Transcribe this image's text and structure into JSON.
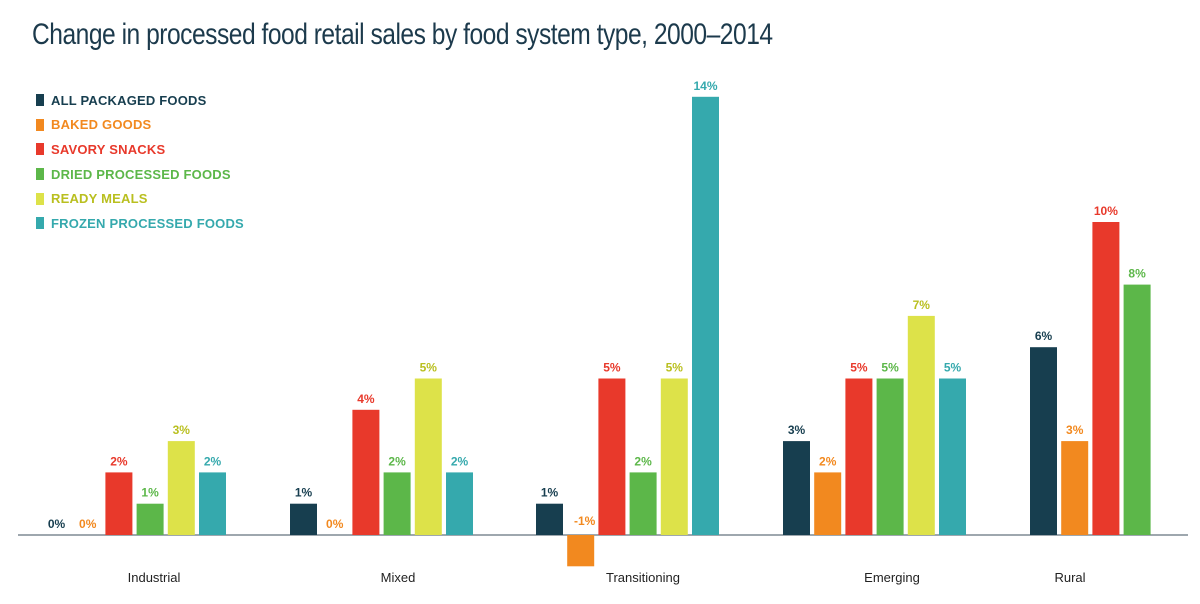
{
  "chart_data": {
    "type": "bar",
    "title": "Change in processed food retail sales by food system type, 2000–2014",
    "categories": [
      "Industrial",
      "Mixed",
      "Transitioning",
      "Emerging",
      "Rural"
    ],
    "series": [
      {
        "name": "ALL PACKAGED FOODS",
        "color": "#173e4f",
        "values": [
          0,
          1,
          1,
          3,
          6
        ],
        "labels": [
          "0%",
          "1%",
          "1%",
          "3%",
          "6%"
        ]
      },
      {
        "name": "BAKED GOODS",
        "color": "#f2891f",
        "values": [
          0,
          0,
          -1,
          2,
          3
        ],
        "labels": [
          "0%",
          "0%",
          "-1%",
          "2%",
          "3%"
        ]
      },
      {
        "name": "SAVORY SNACKS",
        "color": "#e8392b",
        "values": [
          2,
          4,
          5,
          5,
          10
        ],
        "labels": [
          "2%",
          "4%",
          "5%",
          "5%",
          "10%"
        ]
      },
      {
        "name": "DRIED PROCESSED FOODS",
        "color": "#5cb749",
        "values": [
          1,
          2,
          2,
          5,
          8
        ],
        "labels": [
          "1%",
          "2%",
          "2%",
          "5%",
          "8%"
        ]
      },
      {
        "name": "READY MEALS",
        "color": "#dde249",
        "text_color": "#b9bf1f",
        "values": [
          3,
          5,
          5,
          7,
          null
        ],
        "labels": [
          "3%",
          "5%",
          "5%",
          "7%",
          ""
        ]
      },
      {
        "name": "FROZEN PROCESSED FOODS",
        "color": "#35a9ad",
        "values": [
          2,
          2,
          14,
          5,
          null
        ],
        "labels": [
          "2%",
          "2%",
          "14%",
          "5%",
          ""
        ]
      }
    ],
    "ylim": [
      -1,
      14
    ],
    "xlabel": "",
    "ylabel": "",
    "grid": false,
    "legend": "top-left"
  }
}
